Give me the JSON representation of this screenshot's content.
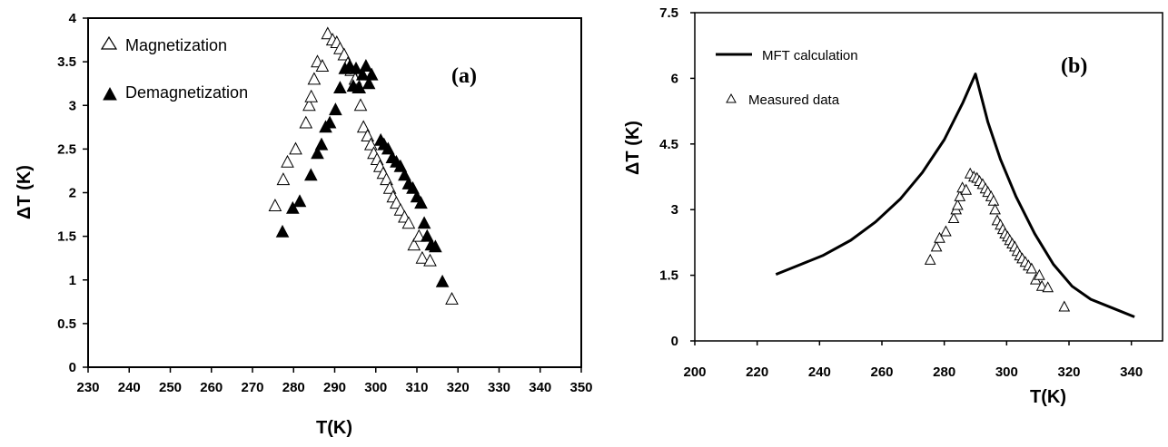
{
  "chart_data": [
    {
      "type": "scatter",
      "panel_label": "(a)",
      "xlabel": "T(K)",
      "ylabel": "ΔT (K)",
      "xlim": [
        230,
        350
      ],
      "ylim": [
        0,
        4
      ],
      "xticks": [
        "230",
        "240",
        "250",
        "260",
        "270",
        "280",
        "290",
        "300",
        "310",
        "320",
        "330",
        "340",
        "350"
      ],
      "yticks": [
        "0",
        "0.5",
        "1",
        "1.5",
        "2",
        "2.5",
        "3",
        "3.5",
        "4"
      ],
      "legend_position": "top-left",
      "series": [
        {
          "name": "Magnetization",
          "marker": "open-triangle",
          "points": [
            [
              275.5,
              1.85
            ],
            [
              277.5,
              2.15
            ],
            [
              278.5,
              2.35
            ],
            [
              280.5,
              2.5
            ],
            [
              283,
              2.8
            ],
            [
              283.8,
              3.0
            ],
            [
              284.3,
              3.1
            ],
            [
              285,
              3.3
            ],
            [
              285.8,
              3.5
            ],
            [
              287,
              3.45
            ],
            [
              288.3,
              3.82
            ],
            [
              289.5,
              3.75
            ],
            [
              290.5,
              3.72
            ],
            [
              291.3,
              3.65
            ],
            [
              292.3,
              3.58
            ],
            [
              293.2,
              3.48
            ],
            [
              294,
              3.4
            ],
            [
              295,
              3.3
            ],
            [
              295.8,
              3.2
            ],
            [
              296.3,
              3.0
            ],
            [
              297,
              2.75
            ],
            [
              298,
              2.65
            ],
            [
              298.8,
              2.55
            ],
            [
              299.5,
              2.45
            ],
            [
              300.3,
              2.38
            ],
            [
              301,
              2.3
            ],
            [
              301.8,
              2.22
            ],
            [
              302.6,
              2.15
            ],
            [
              303.4,
              2.05
            ],
            [
              304.2,
              1.95
            ],
            [
              305,
              1.88
            ],
            [
              306,
              1.8
            ],
            [
              307,
              1.72
            ],
            [
              308,
              1.65
            ],
            [
              309.3,
              1.4
            ],
            [
              310.5,
              1.5
            ],
            [
              311.3,
              1.25
            ],
            [
              313.2,
              1.22
            ],
            [
              318.5,
              0.78
            ]
          ]
        },
        {
          "name": "Demagnetization",
          "marker": "filled-triangle",
          "points": [
            [
              277.3,
              1.55
            ],
            [
              279.8,
              1.82
            ],
            [
              281.5,
              1.9
            ],
            [
              284.2,
              2.2
            ],
            [
              285.8,
              2.45
            ],
            [
              286.8,
              2.55
            ],
            [
              287.8,
              2.75
            ],
            [
              288.8,
              2.8
            ],
            [
              290.2,
              2.95
            ],
            [
              291.3,
              3.2
            ],
            [
              292.5,
              3.42
            ],
            [
              293.7,
              3.45
            ],
            [
              294.5,
              3.22
            ],
            [
              295.2,
              3.42
            ],
            [
              296,
              3.2
            ],
            [
              296.8,
              3.35
            ],
            [
              297.6,
              3.45
            ],
            [
              298.3,
              3.25
            ],
            [
              299,
              3.35
            ],
            [
              301.2,
              2.6
            ],
            [
              302,
              2.55
            ],
            [
              303,
              2.5
            ],
            [
              304,
              2.4
            ],
            [
              305,
              2.35
            ],
            [
              306,
              2.3
            ],
            [
              307,
              2.2
            ],
            [
              308,
              2.1
            ],
            [
              309,
              2.05
            ],
            [
              310,
              1.95
            ],
            [
              311,
              1.88
            ],
            [
              311.8,
              1.65
            ],
            [
              312.5,
              1.5
            ],
            [
              313.5,
              1.4
            ],
            [
              314.5,
              1.38
            ],
            [
              316.2,
              0.98
            ]
          ]
        }
      ]
    },
    {
      "type": "line",
      "panel_label": "(b)",
      "xlabel": "T(K)",
      "ylabel": "ΔT (K)",
      "xlim": [
        200,
        350
      ],
      "ylim": [
        0,
        7.5
      ],
      "xticks": [
        "200",
        "220",
        "240",
        "260",
        "280",
        "300",
        "320",
        "340"
      ],
      "yticks": [
        "0",
        "1.5",
        "3",
        "4.5",
        "6",
        "7.5"
      ],
      "legend_position": "top-left",
      "series": [
        {
          "name": "MFT calculation",
          "style": "line",
          "points": [
            [
              226,
              1.52
            ],
            [
              233,
              1.72
            ],
            [
              241,
              1.95
            ],
            [
              250,
              2.3
            ],
            [
              258,
              2.72
            ],
            [
              266,
              3.25
            ],
            [
              273,
              3.85
            ],
            [
              280,
              4.6
            ],
            [
              286,
              5.45
            ],
            [
              290,
              6.1
            ],
            [
              294,
              5.0
            ],
            [
              298,
              4.15
            ],
            [
              303,
              3.3
            ],
            [
              309,
              2.45
            ],
            [
              315,
              1.75
            ],
            [
              321,
              1.25
            ],
            [
              327,
              0.95
            ],
            [
              334,
              0.75
            ],
            [
              341,
              0.55
            ]
          ]
        },
        {
          "name": "Measured data",
          "marker": "open-triangle",
          "points": [
            [
              275.5,
              1.85
            ],
            [
              277.5,
              2.15
            ],
            [
              278.5,
              2.35
            ],
            [
              280.5,
              2.5
            ],
            [
              283,
              2.8
            ],
            [
              283.8,
              3.0
            ],
            [
              284.3,
              3.1
            ],
            [
              285,
              3.3
            ],
            [
              285.8,
              3.5
            ],
            [
              287,
              3.45
            ],
            [
              288.3,
              3.82
            ],
            [
              289.5,
              3.75
            ],
            [
              290.5,
              3.72
            ],
            [
              291.3,
              3.65
            ],
            [
              292.3,
              3.58
            ],
            [
              293.2,
              3.48
            ],
            [
              294,
              3.4
            ],
            [
              295,
              3.3
            ],
            [
              295.8,
              3.2
            ],
            [
              296.3,
              3.0
            ],
            [
              297,
              2.75
            ],
            [
              298,
              2.65
            ],
            [
              298.8,
              2.55
            ],
            [
              299.5,
              2.45
            ],
            [
              300.3,
              2.38
            ],
            [
              301,
              2.3
            ],
            [
              301.8,
              2.22
            ],
            [
              302.6,
              2.15
            ],
            [
              303.4,
              2.05
            ],
            [
              304.2,
              1.95
            ],
            [
              305,
              1.88
            ],
            [
              306,
              1.8
            ],
            [
              307,
              1.72
            ],
            [
              308,
              1.65
            ],
            [
              309.3,
              1.4
            ],
            [
              310.5,
              1.5
            ],
            [
              311.3,
              1.25
            ],
            [
              313.2,
              1.22
            ],
            [
              318.5,
              0.78
            ]
          ]
        }
      ]
    }
  ]
}
